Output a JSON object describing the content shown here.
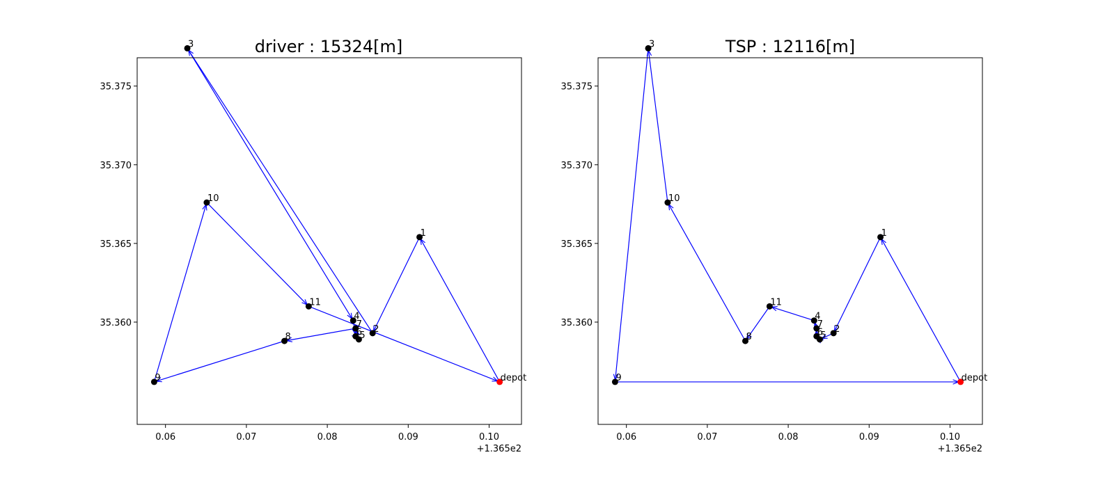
{
  "chart_data": [
    {
      "type": "scatter",
      "title": "driver : 15324[m]",
      "x_offset_label": "+1.365e2",
      "xlim": [
        136.5565,
        136.604
      ],
      "ylim": [
        35.3535,
        35.3768
      ],
      "x_ticks": [
        136.56,
        136.57,
        136.58,
        136.59,
        136.6
      ],
      "x_tick_labels": [
        "0.06",
        "0.07",
        "0.08",
        "0.09",
        "0.10"
      ],
      "y_ticks": [
        35.36,
        35.365,
        35.37,
        35.375
      ],
      "y_tick_labels": [
        "35.360",
        "35.365",
        "35.370",
        "35.375"
      ],
      "grid": false,
      "route_color": "#0000ff",
      "point_color": "#000000",
      "depot_color": "#ff0000",
      "points": [
        {
          "label": "depot",
          "x": 136.6013,
          "y": 35.3562,
          "depot": true
        },
        {
          "label": "1",
          "x": 136.5914,
          "y": 35.3654
        },
        {
          "label": "2",
          "x": 136.5856,
          "y": 35.3593
        },
        {
          "label": "3",
          "x": 136.5627,
          "y": 35.3774
        },
        {
          "label": "4",
          "x": 136.5832,
          "y": 35.3601
        },
        {
          "label": "5",
          "x": 136.5839,
          "y": 35.3589
        },
        {
          "label": "6",
          "x": 136.5835,
          "y": 35.3591
        },
        {
          "label": "7",
          "x": 136.5835,
          "y": 35.3596
        },
        {
          "label": "8",
          "x": 136.5747,
          "y": 35.3588
        },
        {
          "label": "9",
          "x": 136.5586,
          "y": 35.3562
        },
        {
          "label": "10",
          "x": 136.5651,
          "y": 35.3676
        },
        {
          "label": "11",
          "x": 136.5777,
          "y": 35.361
        }
      ],
      "route": [
        "depot",
        "1",
        "2",
        "3",
        "4",
        "6",
        "5",
        "7",
        "8",
        "9",
        "10",
        "11",
        "depot"
      ]
    },
    {
      "type": "scatter",
      "title": "TSP : 12116[m]",
      "x_offset_label": "+1.365e2",
      "xlim": [
        136.5565,
        136.604
      ],
      "ylim": [
        35.3535,
        35.3768
      ],
      "x_ticks": [
        136.56,
        136.57,
        136.58,
        136.59,
        136.6
      ],
      "x_tick_labels": [
        "0.06",
        "0.07",
        "0.08",
        "0.09",
        "0.10"
      ],
      "y_ticks": [
        35.36,
        35.365,
        35.37,
        35.375
      ],
      "y_tick_labels": [
        "35.360",
        "35.365",
        "35.370",
        "35.375"
      ],
      "grid": false,
      "route_color": "#0000ff",
      "point_color": "#000000",
      "depot_color": "#ff0000",
      "points": [
        {
          "label": "depot",
          "x": 136.6013,
          "y": 35.3562,
          "depot": true
        },
        {
          "label": "1",
          "x": 136.5914,
          "y": 35.3654
        },
        {
          "label": "2",
          "x": 136.5856,
          "y": 35.3593
        },
        {
          "label": "3",
          "x": 136.5627,
          "y": 35.3774
        },
        {
          "label": "4",
          "x": 136.5832,
          "y": 35.3601
        },
        {
          "label": "5",
          "x": 136.5839,
          "y": 35.3589
        },
        {
          "label": "6",
          "x": 136.5835,
          "y": 35.3591
        },
        {
          "label": "7",
          "x": 136.5835,
          "y": 35.3596
        },
        {
          "label": "8",
          "x": 136.5747,
          "y": 35.3588
        },
        {
          "label": "9",
          "x": 136.5586,
          "y": 35.3562
        },
        {
          "label": "10",
          "x": 136.5651,
          "y": 35.3676
        },
        {
          "label": "11",
          "x": 136.5777,
          "y": 35.361
        }
      ],
      "route": [
        "depot",
        "1",
        "2",
        "5",
        "6",
        "7",
        "4",
        "11",
        "8",
        "10",
        "3",
        "9",
        "depot"
      ]
    }
  ]
}
